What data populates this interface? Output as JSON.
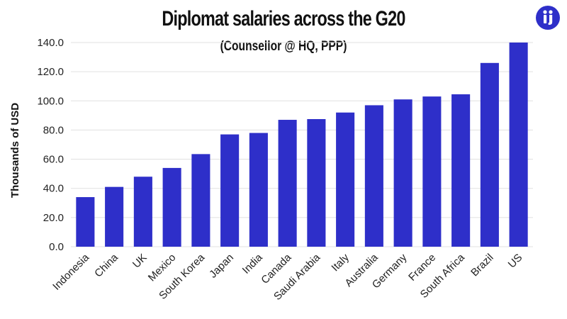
{
  "colors": {
    "bar": "#2e2fc9",
    "grid": "#e0e0e0",
    "logo": "#2e2fc9"
  },
  "logo": {
    "icon": "info-person-logo-icon"
  },
  "chart_data": {
    "type": "bar",
    "title": "Diplomat salaries across the G20",
    "subtitle": "(Counsellor @ HQ, PPP)",
    "xlabel": "",
    "ylabel": "Thousands of USD",
    "ylim": [
      0,
      140
    ],
    "yticks": [
      0,
      20,
      40,
      60,
      80,
      100,
      120,
      140
    ],
    "ytick_labels": [
      "0.0",
      "20.0",
      "40.0",
      "60.0",
      "80.0",
      "100.0",
      "120.0",
      "140.0"
    ],
    "grid": true,
    "categories": [
      "Indonesia",
      "China",
      "UK",
      "Mexico",
      "South Korea",
      "Japan",
      "India",
      "Canada",
      "Saudi Arabia",
      "Italy",
      "Australia",
      "Germany",
      "France",
      "South Africa",
      "Brazil",
      "US"
    ],
    "values": [
      34,
      41,
      48,
      54,
      63.5,
      77,
      78,
      87,
      87.5,
      92,
      97,
      101,
      103,
      104.5,
      126,
      140
    ]
  }
}
